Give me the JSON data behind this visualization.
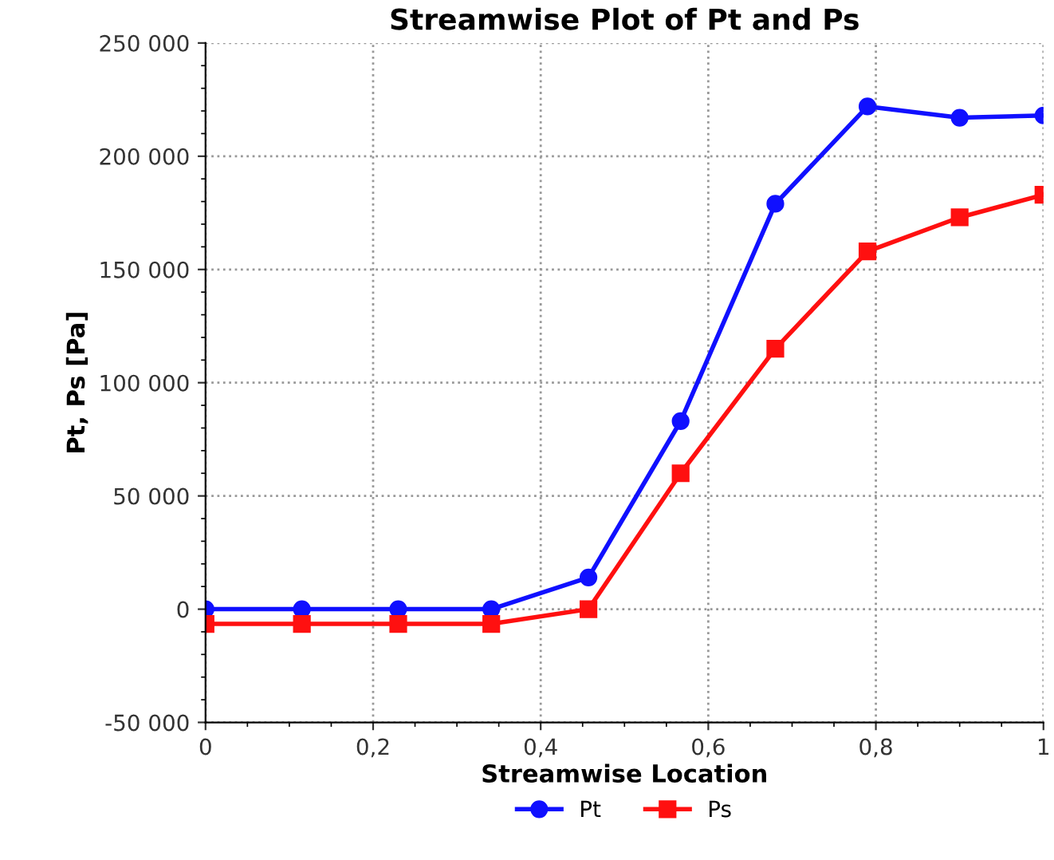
{
  "chart_data": {
    "type": "line",
    "title": "Streamwise Plot of Pt and Ps",
    "xlabel": "Streamwise Location",
    "ylabel": "Pt, Ps [Pa]",
    "x": [
      0,
      0.115,
      0.23,
      0.341,
      0.457,
      0.567,
      0.68,
      0.79,
      0.9,
      1
    ],
    "series": [
      {
        "name": "Pt",
        "color": "#1010ff",
        "marker": "circle",
        "values": [
          0,
          0,
          0,
          0,
          14000,
          83000,
          179000,
          222000,
          217000,
          218000
        ]
      },
      {
        "name": "Ps",
        "color": "#ff1010",
        "marker": "square",
        "values": [
          -6500,
          -6500,
          -6500,
          -6500,
          0,
          60000,
          115000,
          158000,
          173000,
          183000
        ]
      }
    ],
    "xlim": [
      0,
      1
    ],
    "ylim": [
      -50000,
      250000
    ],
    "xticks": [
      0,
      {
        "value": 0.2,
        "label": "0,2"
      },
      {
        "value": 0.4,
        "label": "0,4"
      },
      {
        "value": 0.6,
        "label": "0,6"
      },
      {
        "value": 0.8,
        "label": "0,8"
      },
      1
    ],
    "yticks": [
      {
        "value": -50000,
        "label": "-50 000"
      },
      0,
      {
        "value": 50000,
        "label": "50 000"
      },
      {
        "value": 100000,
        "label": "100 000"
      },
      {
        "value": 150000,
        "label": "150 000"
      },
      {
        "value": 200000,
        "label": "200 000"
      },
      {
        "value": 250000,
        "label": "250 000"
      }
    ],
    "grid": true,
    "legend": "bottom",
    "line_style": "solid"
  }
}
